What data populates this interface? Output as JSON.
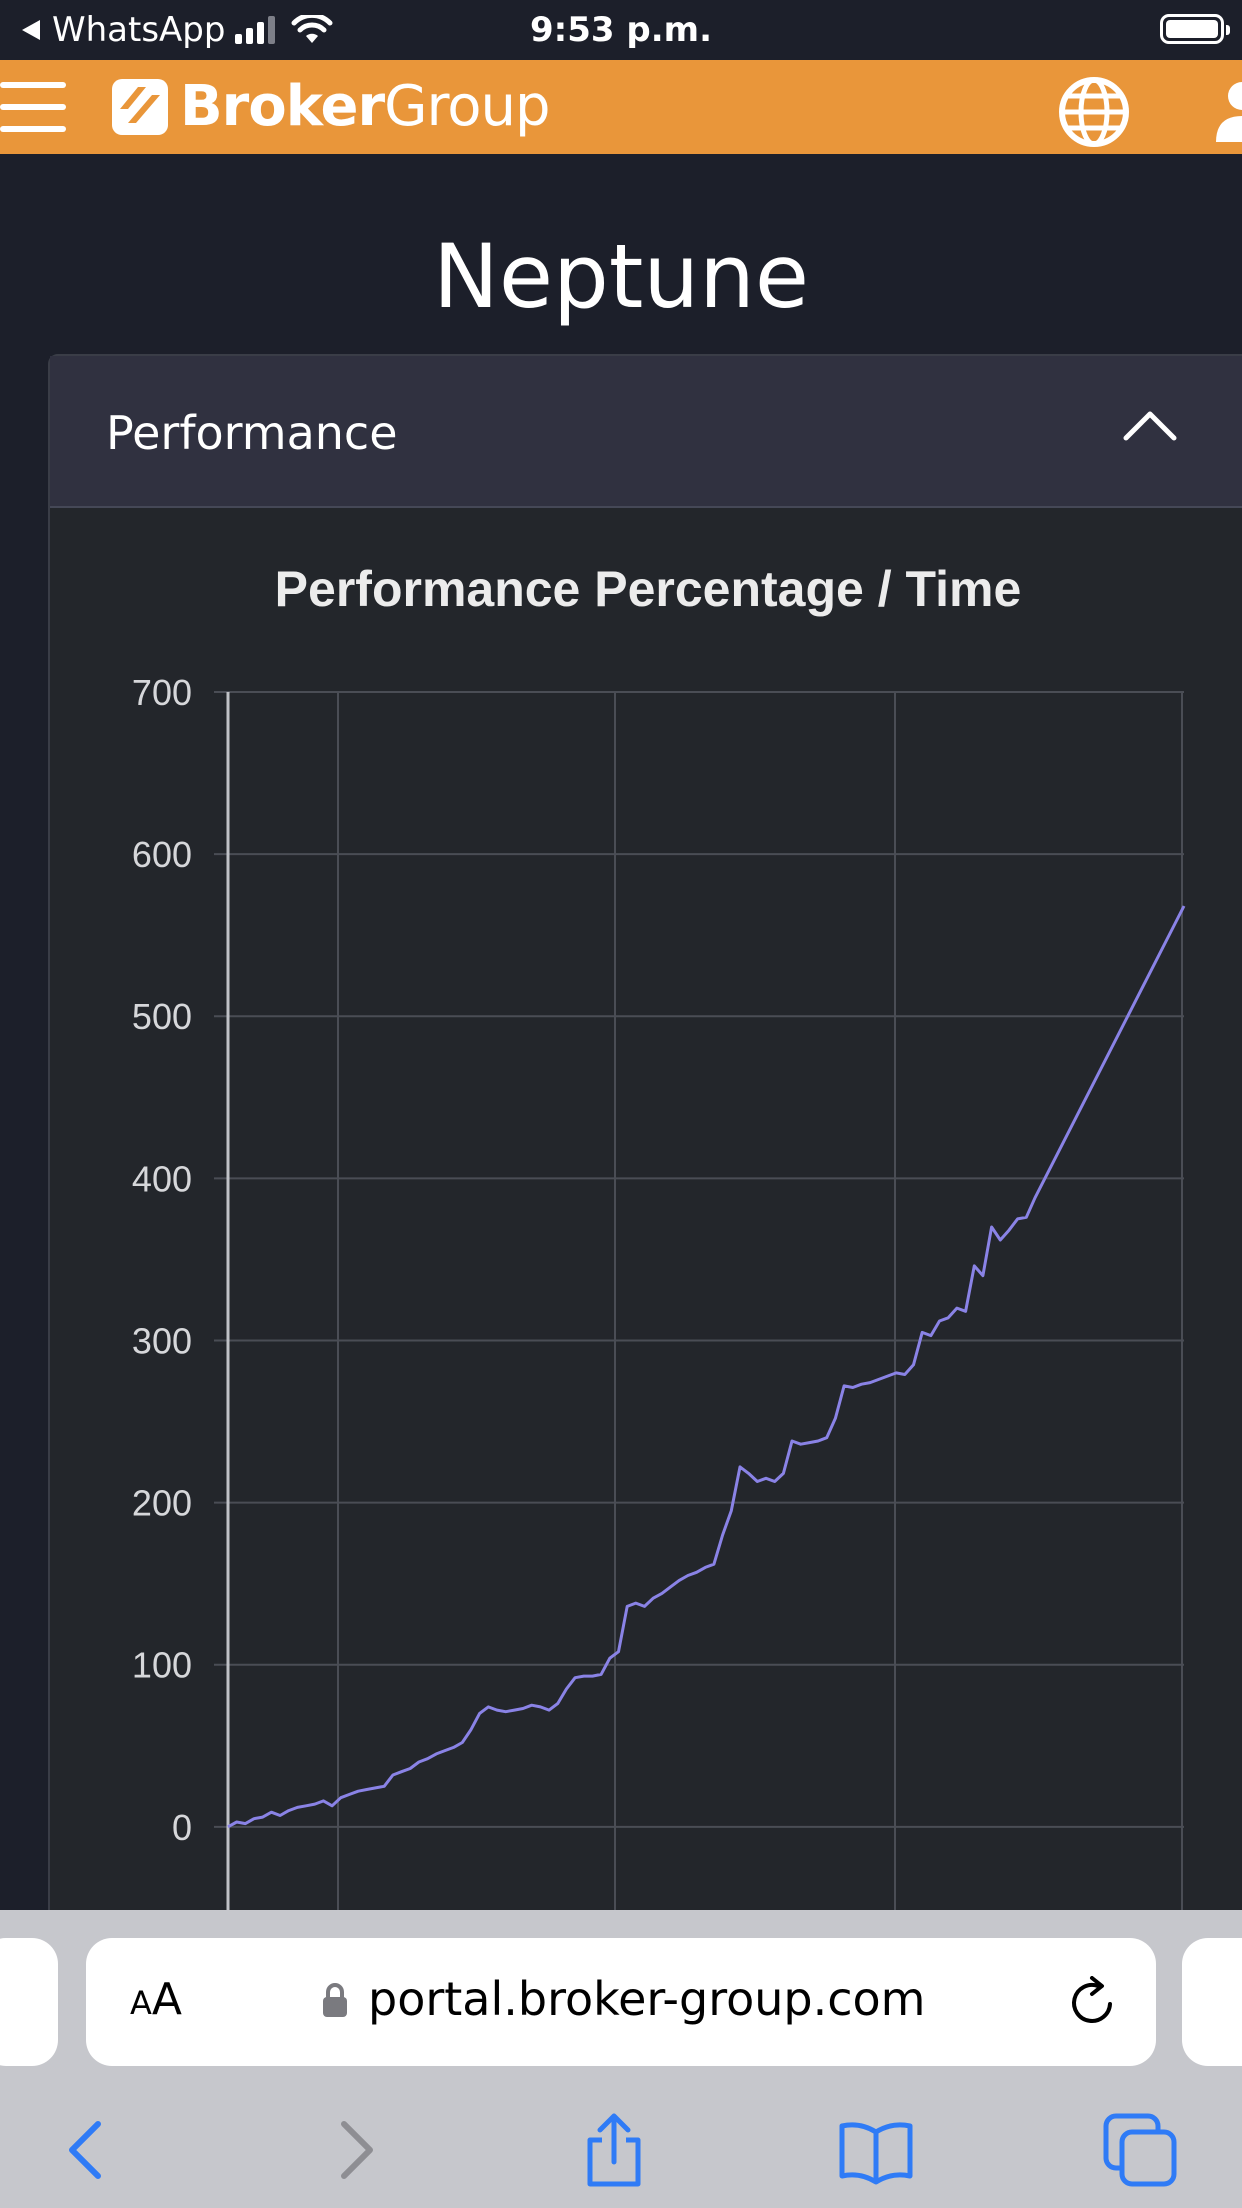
{
  "status_bar": {
    "back_app": "WhatsApp",
    "time": "9:53 p.m.",
    "battery_level": 1.0
  },
  "header": {
    "brand_bold": "Broker",
    "brand_light": "Group",
    "menu_icon": "hamburger-icon",
    "language_icon": "globe-icon",
    "account_icon": "user-icon",
    "color": "#e9963a"
  },
  "page": {
    "title": "Neptune"
  },
  "panel": {
    "title": "Performance",
    "toggle_icon": "chevron-up-icon"
  },
  "chart_data": {
    "type": "line",
    "title": "Performance Percentage / Time",
    "xlabel": "",
    "ylabel": "",
    "ylim": [
      -55,
      700
    ],
    "yticks": [
      0,
      100,
      200,
      300,
      400,
      500,
      600,
      700
    ],
    "grid": true,
    "line_color": "#8a83e6",
    "series": [
      {
        "values": [
          0,
          3,
          2,
          5,
          6,
          9,
          7,
          10,
          12,
          13,
          14,
          16,
          13,
          18,
          20,
          22,
          23,
          24,
          25,
          32,
          34,
          36,
          40,
          42,
          45,
          47,
          49,
          52,
          60,
          70,
          74,
          72,
          71,
          72,
          73,
          75,
          74,
          72,
          76,
          85,
          92,
          93,
          93,
          94,
          104,
          108,
          136,
          138,
          136,
          141,
          144,
          148,
          152,
          155,
          157,
          160,
          162,
          180,
          195,
          222,
          218,
          213,
          215,
          213,
          218,
          238,
          236,
          237,
          238,
          240,
          252,
          272,
          271,
          273,
          274,
          276,
          278,
          280,
          279,
          285,
          305,
          303,
          312,
          314,
          320,
          318,
          346,
          340,
          370,
          362,
          368,
          375,
          376,
          388,
          568
        ]
      }
    ]
  },
  "browser": {
    "text_size_button_small": "A",
    "text_size_button_large": "A",
    "url": "portal.broker-group.com",
    "lock_icon": "lock-icon",
    "reload_icon": "reload-icon",
    "back_icon": "back-chevron-icon",
    "forward_icon": "forward-chevron-icon",
    "share_icon": "share-icon",
    "bookmarks_icon": "book-icon",
    "tabs_icon": "tabs-icon",
    "accent": "#2f7bf6"
  }
}
